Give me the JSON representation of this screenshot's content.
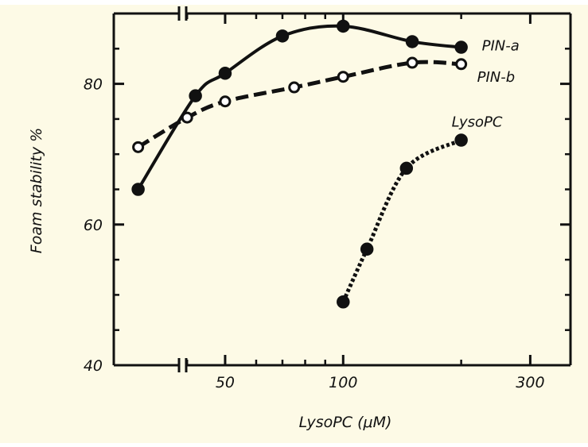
{
  "colors": {
    "background": "#fdfae6",
    "ink": "#111111",
    "outer": "#ffffff"
  },
  "chart_data": {
    "type": "line",
    "title": "",
    "xlabel": "LysoPC (μM)",
    "ylabel": "Foam stability %",
    "x_scale": "log",
    "x_axis_break": true,
    "xlim": [
      26,
      380
    ],
    "ylim": [
      40,
      90
    ],
    "x_ticks": [
      50,
      100,
      300
    ],
    "x_minor_ticks": [
      40,
      60,
      70,
      80,
      90,
      200
    ],
    "y_ticks": [
      40,
      60,
      80
    ],
    "y_minor_ticks": [
      45,
      50,
      55,
      65,
      70,
      75,
      85
    ],
    "grid": false,
    "legend": "labels at end of lines",
    "series": [
      {
        "name": "PIN-a",
        "line_style": "solid",
        "marker": "filled-circle",
        "x": [
          30,
          42,
          50,
          70,
          100,
          150,
          200
        ],
        "y": [
          65,
          78.3,
          81.5,
          86.8,
          88.2,
          86.0,
          85.2
        ]
      },
      {
        "name": "PIN-b",
        "line_style": "dashed",
        "marker": "open-circle",
        "x": [
          30,
          40,
          50,
          75,
          100,
          150,
          200
        ],
        "y": [
          71,
          75.2,
          77.5,
          79.5,
          81.0,
          83.0,
          82.8
        ]
      },
      {
        "name": "LysoPC",
        "line_style": "dotted",
        "marker": "filled-circle",
        "x": [
          100,
          115,
          145,
          200
        ],
        "y": [
          49,
          56.5,
          68,
          72
        ]
      }
    ]
  }
}
